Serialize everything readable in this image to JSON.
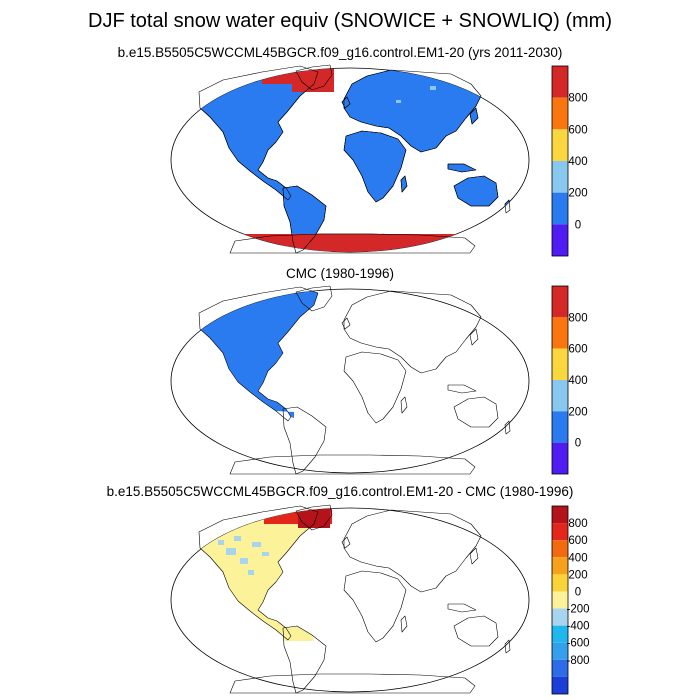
{
  "title": "DJF total snow water equiv (SNOWICE + SNOWLIQ) (mm)",
  "colors": {
    "cb_purple": "#4f1cf2",
    "cb_blue": "#2b7bf0",
    "cb_lightblue": "#88c8ee",
    "cb_yellow": "#fad63f",
    "cb_orange": "#f9760f",
    "cb_red": "#d42828",
    "diff_darkblue": "#1b3fd6",
    "diff_blue": "#2e6be8",
    "diff_sky": "#34a0ec",
    "diff_cyan": "#1fb7ec",
    "diff_pale": "#a9d4ef",
    "diff_paleyellow": "#fbf29a",
    "diff_yellow": "#f9d338",
    "diff_orange": "#f5a11c",
    "diff_deeporange": "#f26a10",
    "diff_red": "#e3261c",
    "diff_darkred": "#b5131c",
    "land_line": "#000000"
  },
  "chart_data": [
    {
      "type": "heatmap",
      "title": "b.e15.B5505C5WCCML45BGCR.f09_g16.control.EM1-20 (yrs 2011-2030)",
      "projection": "Robinson",
      "variable": "DJF total snow water equiv",
      "units": "mm",
      "colorbar_ticks": [
        "800",
        "600",
        "400",
        "200",
        "0"
      ],
      "colorbar_levels": [
        -200,
        0,
        200,
        400,
        600,
        800,
        1000
      ],
      "regions": [
        {
          "region": "all land",
          "value_range": "0-200"
        },
        {
          "region": "Greenland / Arctic islands",
          "value_range": ">800"
        },
        {
          "region": "Antarctica",
          "value_range": ">800"
        }
      ]
    },
    {
      "type": "heatmap",
      "title": "CMC (1980-1996)",
      "projection": "Robinson",
      "variable": "DJF total snow water equiv",
      "units": "mm",
      "colorbar_ticks": [
        "800",
        "600",
        "400",
        "200",
        "0"
      ],
      "colorbar_levels": [
        -200,
        0,
        200,
        400,
        600,
        800,
        1000
      ],
      "regions": [
        {
          "region": "North America (to ~17N)",
          "value_range": "0-200"
        }
      ]
    },
    {
      "type": "heatmap",
      "title": "b.e15.B5505C5WCCML45BGCR.f09_g16.control.EM1-20 - CMC (1980-1996)",
      "projection": "Robinson",
      "variable": "DJF total snow water equiv difference",
      "units": "mm",
      "colorbar_ticks": [
        "800",
        "600",
        "400",
        "200",
        "0",
        "-200",
        "-400",
        "-600",
        "-800"
      ],
      "colorbar_levels": [
        -1000,
        -800,
        -600,
        -400,
        -200,
        0,
        200,
        400,
        600,
        800,
        1000
      ],
      "regions": [
        {
          "region": "North America",
          "value_range": "0-200"
        },
        {
          "region": "Canadian Arctic / Greenland",
          "value_range": ">800"
        }
      ]
    }
  ]
}
